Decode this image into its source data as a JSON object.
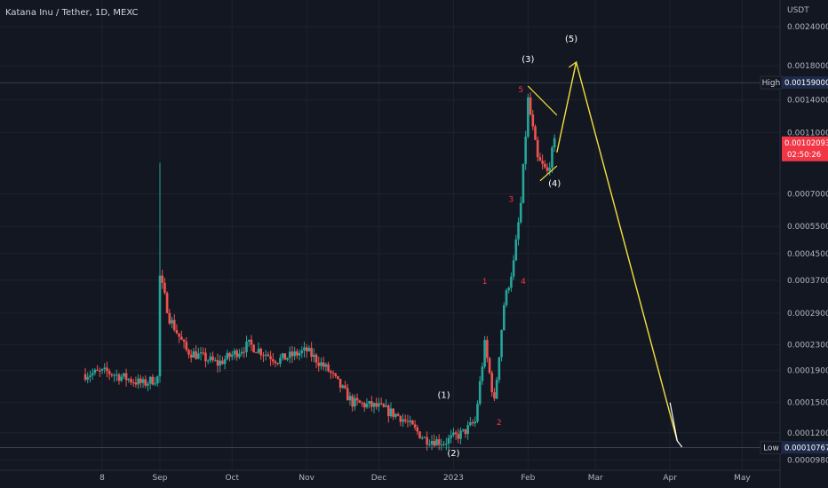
{
  "header": {
    "symbol_title": "Katana Inu / Tether, 1D, MEXC"
  },
  "chart_data": {
    "type": "candlestick",
    "currency_label": "USDT",
    "scale": "log",
    "ylim": [
      9.1e-05,
      0.00285
    ],
    "y_ticks": [
      "0.00240000",
      "0.00180000",
      "0.00140000",
      "0.00110000",
      "0.00070000",
      "0.00055000",
      "0.00045000",
      "0.00037000",
      "0.00029000",
      "0.00023000",
      "0.00019000",
      "0.00015000",
      "0.00012000",
      "0.00009800"
    ],
    "x_ticks": [
      {
        "label": "8",
        "date": "2022-08-08"
      },
      {
        "label": "Sep",
        "date": "2022-09-01"
      },
      {
        "label": "Oct",
        "date": "2022-10-01"
      },
      {
        "label": "Nov",
        "date": "2022-11-01"
      },
      {
        "label": "Dec",
        "date": "2022-12-01"
      },
      {
        "label": "2023",
        "date": "2023-01-01"
      },
      {
        "label": "Feb",
        "date": "2023-02-01"
      },
      {
        "label": "Mar",
        "date": "2023-03-01"
      },
      {
        "label": "Apr",
        "date": "2023-04-01"
      },
      {
        "label": "May",
        "date": "2023-05-01"
      }
    ],
    "high": {
      "label": "High",
      "value": "0.00159000"
    },
    "low": {
      "label": "Low",
      "value": "0.00010767"
    },
    "last_price": {
      "value": "0.00102093",
      "countdown": "02:50:26"
    },
    "key_points": [
      {
        "date": "2022-08-01",
        "price": 0.000185
      },
      {
        "date": "2022-08-10",
        "price": 0.000188
      },
      {
        "date": "2022-08-25",
        "price": 0.000172
      },
      {
        "date": "2022-08-31",
        "price": 0.00018
      },
      {
        "date": "2022-09-01",
        "price": 0.00038
      },
      {
        "date": "2022-09-05",
        "price": 0.00028
      },
      {
        "date": "2022-09-12",
        "price": 0.00022
      },
      {
        "date": "2022-09-25",
        "price": 0.0002
      },
      {
        "date": "2022-10-08",
        "price": 0.00023
      },
      {
        "date": "2022-10-20",
        "price": 0.000205
      },
      {
        "date": "2022-11-01",
        "price": 0.00022
      },
      {
        "date": "2022-11-10",
        "price": 0.00019
      },
      {
        "date": "2022-11-20",
        "price": 0.00015
      },
      {
        "date": "2022-12-01",
        "price": 0.000145
      },
      {
        "date": "2022-12-10",
        "price": 0.000135
      },
      {
        "date": "2022-12-20",
        "price": 0.000115
      },
      {
        "date": "2022-12-28",
        "price": 0.000112
      },
      {
        "date": "2023-01-05",
        "price": 0.00012
      },
      {
        "date": "2023-01-10",
        "price": 0.00013
      },
      {
        "date": "2023-01-14",
        "price": 0.00023
      },
      {
        "date": "2023-01-18",
        "price": 0.00015
      },
      {
        "date": "2023-01-22",
        "price": 0.00031
      },
      {
        "date": "2023-01-26",
        "price": 0.00042
      },
      {
        "date": "2023-01-29",
        "price": 0.00065
      },
      {
        "date": "2023-02-01",
        "price": 0.0014
      },
      {
        "date": "2023-02-05",
        "price": 0.0009
      },
      {
        "date": "2023-02-09",
        "price": 0.00082
      },
      {
        "date": "2023-02-12",
        "price": 0.00102
      }
    ],
    "spike_wick": {
      "date": "2022-09-01",
      "high": 0.00088
    },
    "annotations": {
      "wave_labels": [
        {
          "text": "(1)",
          "date": "2022-12-28",
          "price": 0.000155
        },
        {
          "text": "(2)",
          "date": "2023-01-01",
          "price": 0.000101
        },
        {
          "text": "(3)",
          "date": "2023-02-01",
          "price": 0.00185
        },
        {
          "text": "(4)",
          "date": "2023-02-12",
          "price": 0.00074
        },
        {
          "text": "(5)",
          "date": "2023-02-19",
          "price": 0.00215
        }
      ],
      "subwave_labels": [
        {
          "text": "1",
          "date": "2023-01-14",
          "price": 0.00036
        },
        {
          "text": "2",
          "date": "2023-01-20",
          "price": 0.000127
        },
        {
          "text": "3",
          "date": "2023-01-25",
          "price": 0.00066
        },
        {
          "text": "4",
          "date": "2023-01-30",
          "price": 0.00036
        },
        {
          "text": "5",
          "date": "2023-01-29",
          "price": 0.00148
        }
      ]
    }
  }
}
